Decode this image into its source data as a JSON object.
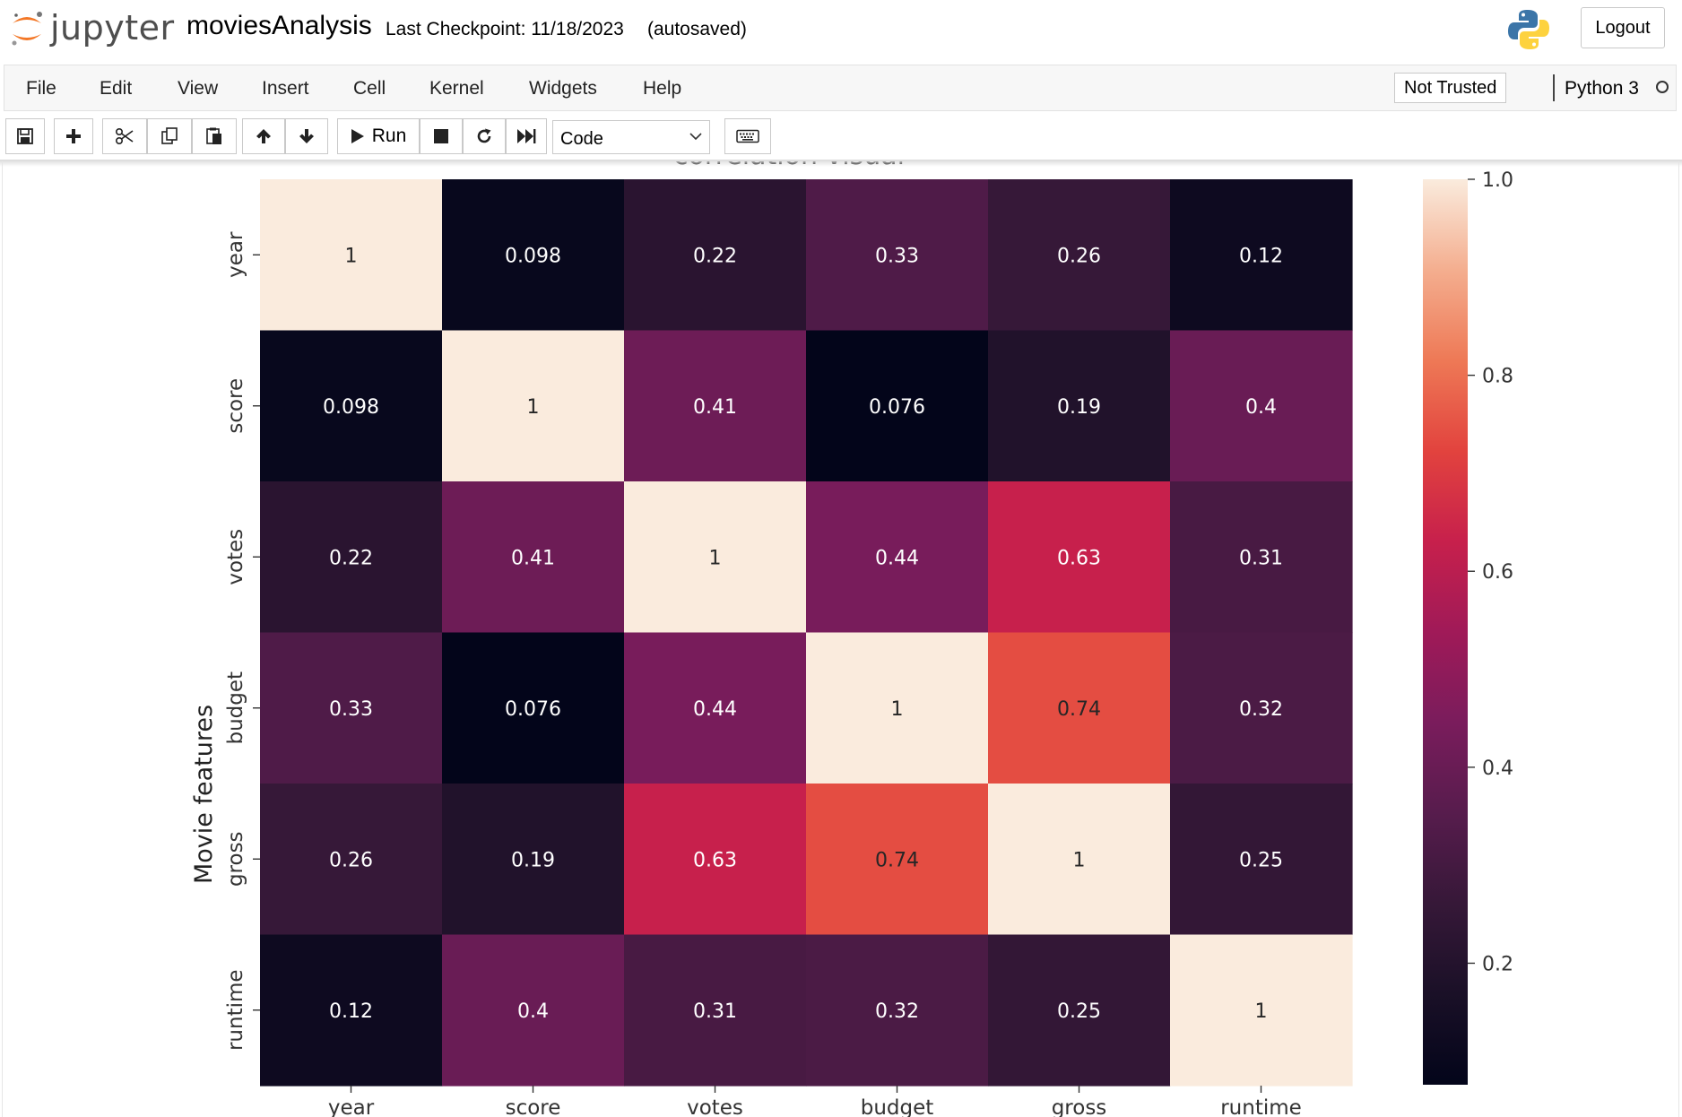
{
  "header": {
    "logo_text": "jupyter",
    "notebook_name": "moviesAnalysis",
    "checkpoint": "Last Checkpoint: 11/18/2023",
    "autosave": "(autosaved)",
    "logout_label": "Logout"
  },
  "menubar": {
    "items": [
      "File",
      "Edit",
      "View",
      "Insert",
      "Cell",
      "Kernel",
      "Widgets",
      "Help"
    ],
    "trust_label": "Not Trusted",
    "kernel_name": "Python 3"
  },
  "toolbar": {
    "run_label": "Run",
    "cell_type": "Code",
    "icons": [
      "save-icon",
      "plus-icon",
      "scissors-icon",
      "copy-icon",
      "paste-icon",
      "arrow-up-icon",
      "arrow-down-icon",
      "play-icon",
      "stop-icon",
      "restart-icon",
      "fast-forward-icon",
      "keyboard-icon"
    ]
  },
  "chart_data": {
    "type": "heatmap",
    "title": "correlation visual",
    "ylabel": "Movie features",
    "xlabel": "",
    "categories": [
      "year",
      "score",
      "votes",
      "budget",
      "gross",
      "runtime"
    ],
    "values": [
      [
        1,
        0.098,
        0.22,
        0.33,
        0.26,
        0.12
      ],
      [
        0.098,
        1,
        0.41,
        0.076,
        0.19,
        0.4
      ],
      [
        0.22,
        0.41,
        1,
        0.44,
        0.63,
        0.31
      ],
      [
        0.33,
        0.076,
        0.44,
        1,
        0.74,
        0.32
      ],
      [
        0.26,
        0.19,
        0.63,
        0.74,
        1,
        0.25
      ],
      [
        0.12,
        0.4,
        0.31,
        0.32,
        0.25,
        1
      ]
    ],
    "labels": [
      [
        "1",
        "0.098",
        "0.22",
        "0.33",
        "0.26",
        "0.12"
      ],
      [
        "0.098",
        "1",
        "0.41",
        "0.076",
        "0.19",
        "0.4"
      ],
      [
        "0.22",
        "0.41",
        "1",
        "0.44",
        "0.63",
        "0.31"
      ],
      [
        "0.33",
        "0.076",
        "0.44",
        "1",
        "0.74",
        "0.32"
      ],
      [
        "0.26",
        "0.19",
        "0.63",
        "0.74",
        "1",
        "0.25"
      ],
      [
        "0.12",
        "0.4",
        "0.31",
        "0.32",
        "0.25",
        "1"
      ]
    ],
    "colorscale": "rocket",
    "colorbar": {
      "range": [
        0.076,
        1.0
      ],
      "ticks": [
        1.0,
        0.8,
        0.6,
        0.4,
        0.2
      ],
      "tick_labels": [
        "1.0",
        "0.8",
        "0.6",
        "0.4",
        "0.2"
      ]
    }
  }
}
